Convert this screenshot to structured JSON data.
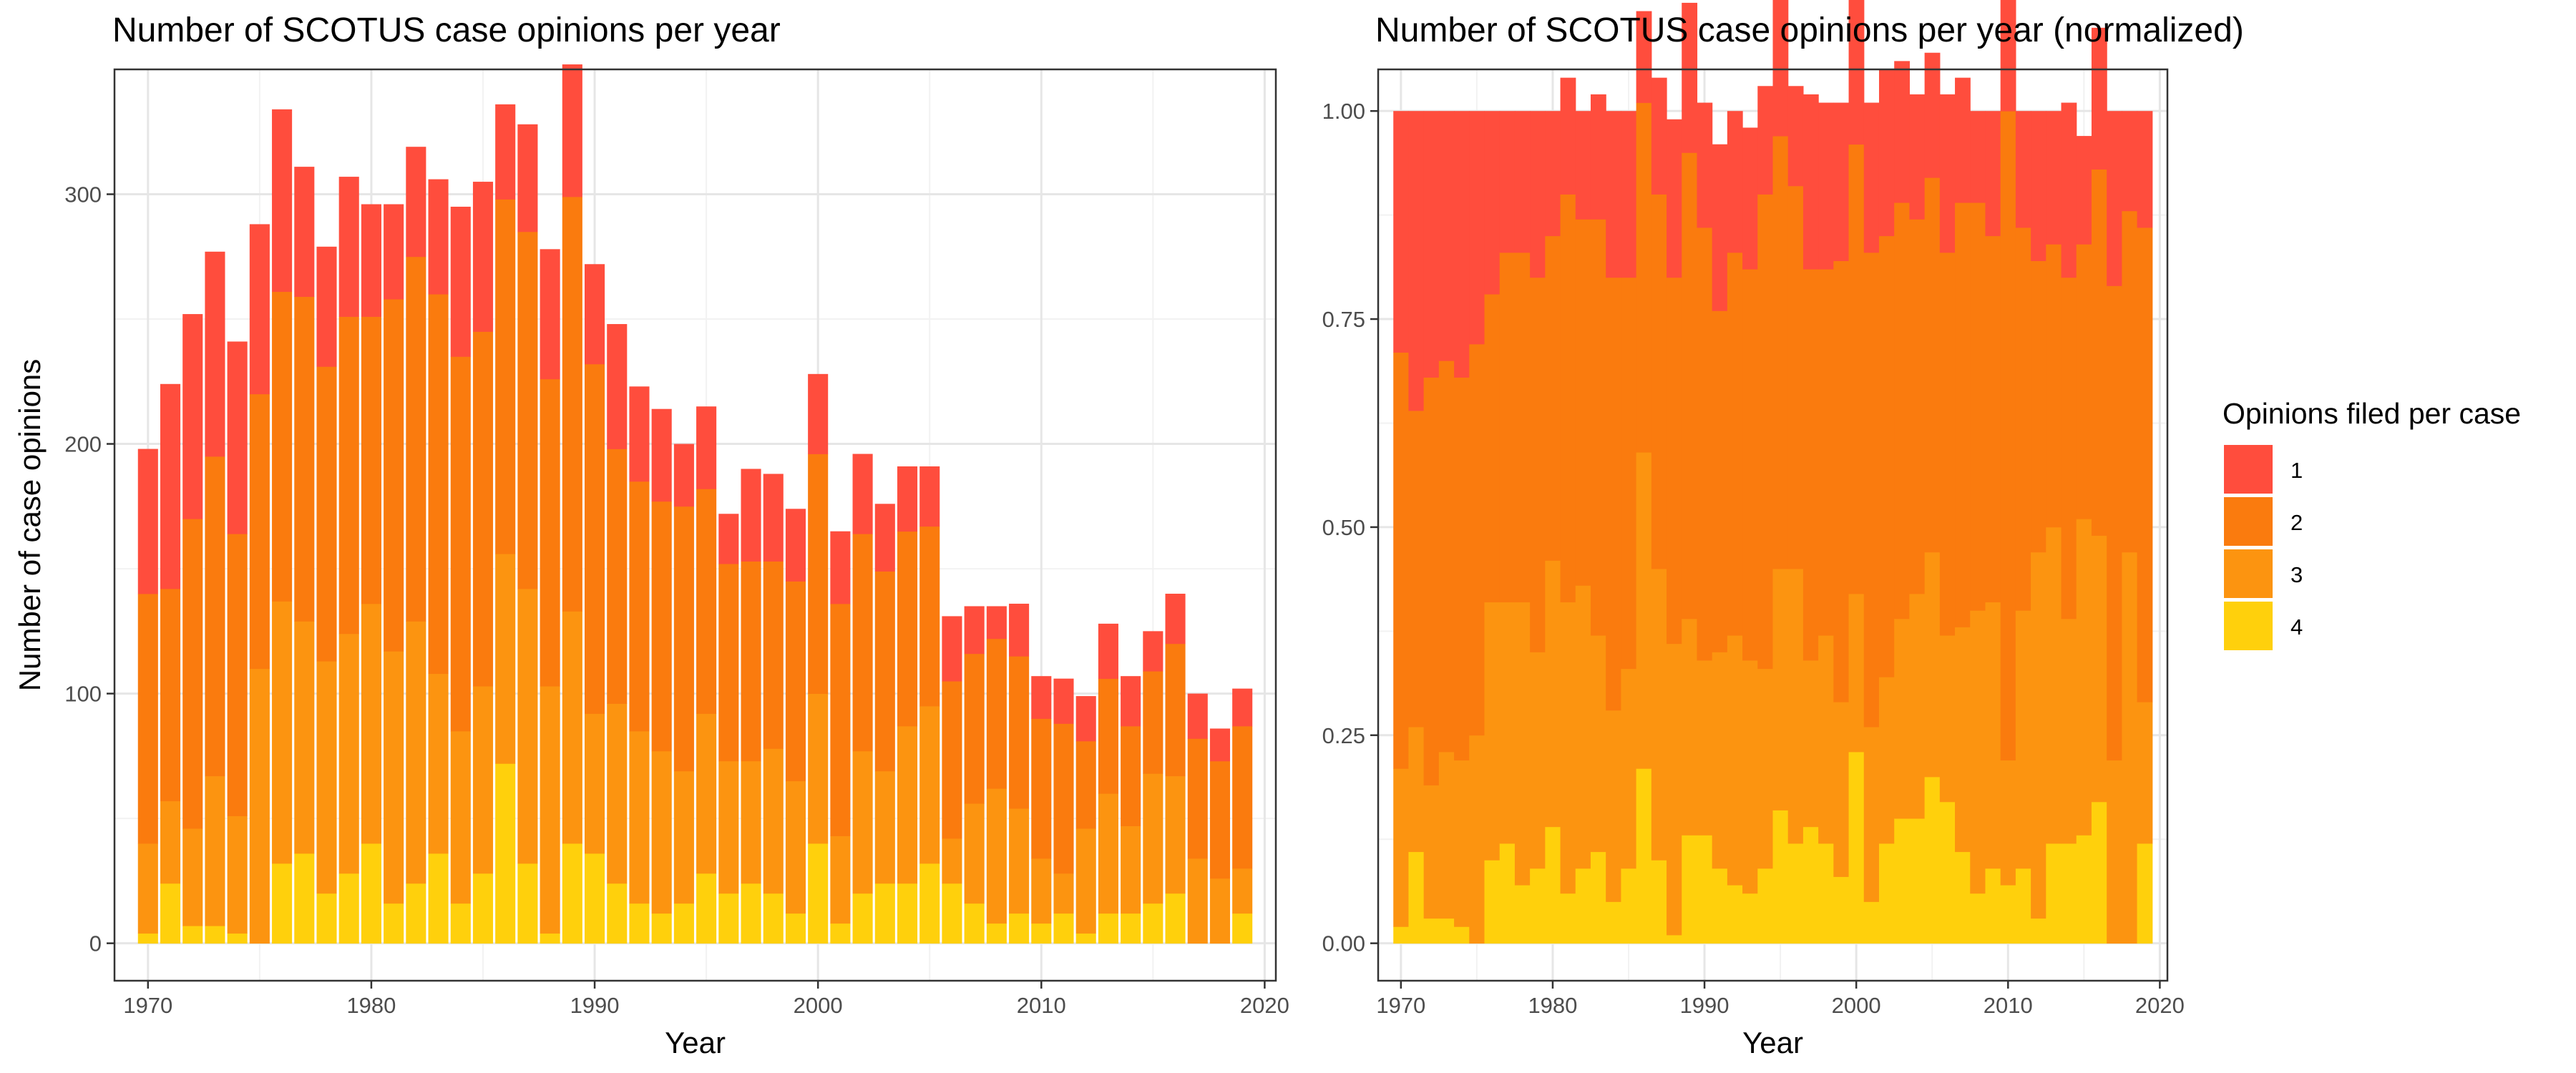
{
  "figure": {
    "legend": {
      "title": "Opinions filed per case",
      "position": "right"
    }
  },
  "chart_data": [
    {
      "type": "bar",
      "stacked": true,
      "title": "Number of SCOTUS case opinions per year",
      "xlabel": "Year",
      "ylabel": "Number of case opinions",
      "xlim": [
        1968.5,
        2020.5
      ],
      "ylim": [
        -15,
        350
      ],
      "x_ticks": [
        1970,
        1980,
        1990,
        2000,
        2010,
        2020
      ],
      "y_ticks": [
        0,
        100,
        200,
        300
      ],
      "grid": true,
      "x": [
        1970,
        1971,
        1972,
        1973,
        1974,
        1975,
        1976,
        1977,
        1978,
        1979,
        1980,
        1981,
        1982,
        1983,
        1984,
        1985,
        1986,
        1987,
        1988,
        1989,
        1990,
        1991,
        1992,
        1993,
        1994,
        1995,
        1996,
        1997,
        1998,
        1999,
        2000,
        2001,
        2002,
        2003,
        2004,
        2005,
        2006,
        2007,
        2008,
        2009,
        2010,
        2011,
        2012,
        2013,
        2014,
        2015,
        2016,
        2017,
        2018,
        2019
      ],
      "series": [
        {
          "name": "1",
          "color": "#FF4D3D",
          "values": [
            58,
            82,
            82,
            82,
            77,
            68,
            73,
            52,
            48,
            56,
            45,
            38,
            44,
            46,
            60,
            60,
            38,
            43,
            52,
            53,
            40,
            50,
            38,
            37,
            25,
            33,
            20,
            37,
            35,
            29,
            32,
            29,
            32,
            27,
            26,
            24,
            26,
            19,
            13,
            21,
            17,
            18,
            18,
            22,
            20,
            16,
            20,
            18,
            13,
            15
          ]
        },
        {
          "name": "2",
          "color": "#FA7B0E",
          "values": [
            100,
            85,
            124,
            128,
            113,
            110,
            124,
            130,
            118,
            127,
            115,
            141,
            146,
            152,
            150,
            142,
            142,
            143,
            123,
            166,
            140,
            102,
            100,
            100,
            106,
            90,
            79,
            80,
            75,
            80,
            96,
            93,
            87,
            80,
            78,
            72,
            63,
            60,
            60,
            61,
            56,
            60,
            35,
            46,
            40,
            41,
            53,
            48,
            47,
            57
          ]
        },
        {
          "name": "3",
          "color": "#FC9410",
          "values": [
            36,
            33,
            39,
            60,
            47,
            110,
            105,
            93,
            93,
            96,
            96,
            101,
            105,
            72,
            69,
            75,
            84,
            110,
            99,
            93,
            56,
            72,
            69,
            65,
            53,
            64,
            53,
            49,
            58,
            53,
            60,
            35,
            57,
            45,
            63,
            63,
            18,
            40,
            54,
            42,
            26,
            16,
            42,
            48,
            35,
            52,
            47,
            34,
            26,
            18
          ]
        },
        {
          "name": "4",
          "color": "#FFD00C",
          "values": [
            4,
            24,
            7,
            7,
            4,
            0,
            32,
            36,
            20,
            28,
            40,
            16,
            24,
            36,
            16,
            28,
            72,
            32,
            4,
            40,
            36,
            24,
            16,
            12,
            16,
            28,
            20,
            24,
            20,
            12,
            40,
            8,
            20,
            24,
            24,
            32,
            24,
            16,
            8,
            12,
            8,
            12,
            4,
            12,
            12,
            16,
            20,
            0,
            0,
            12
          ]
        }
      ]
    },
    {
      "type": "bar",
      "stacked": true,
      "normalized": true,
      "title": "Number of SCOTUS case opinions per year (normalized)",
      "xlabel": "Year",
      "ylabel": "",
      "xlim": [
        1968.5,
        2020.5
      ],
      "ylim": [
        -0.045,
        1.05
      ],
      "x_ticks": [
        1970,
        1980,
        1990,
        2000,
        2010,
        2020
      ],
      "y_ticks": [
        0,
        0.25,
        0.5,
        0.75,
        1.0
      ],
      "y_tick_labels": [
        "0.00",
        "0.25",
        "0.50",
        "0.75",
        "1.00"
      ],
      "grid": true,
      "x": [
        1970,
        1971,
        1972,
        1973,
        1974,
        1975,
        1976,
        1977,
        1978,
        1979,
        1980,
        1981,
        1982,
        1983,
        1984,
        1985,
        1986,
        1987,
        1988,
        1989,
        1990,
        1991,
        1992,
        1993,
        1994,
        1995,
        1996,
        1997,
        1998,
        1999,
        2000,
        2001,
        2002,
        2003,
        2004,
        2005,
        2006,
        2007,
        2008,
        2009,
        2010,
        2011,
        2012,
        2013,
        2014,
        2015,
        2016,
        2017,
        2018,
        2019
      ],
      "series": [
        {
          "name": "1",
          "color": "#FF4D3D",
          "values": [
            0.29,
            0.36,
            0.32,
            0.3,
            0.32,
            0.28,
            0.22,
            0.17,
            0.17,
            0.2,
            0.15,
            0.14,
            0.13,
            0.15,
            0.2,
            0.2,
            0.11,
            0.14,
            0.19,
            0.18,
            0.15,
            0.2,
            0.17,
            0.17,
            0.13,
            0.19,
            0.12,
            0.21,
            0.2,
            0.19,
            0.18,
            0.18,
            0.2,
            0.17,
            0.15,
            0.15,
            0.19,
            0.15,
            0.11,
            0.15,
            0.14,
            0.14,
            0.18,
            0.16,
            0.21,
            0.13,
            0.17,
            0.21,
            0.12,
            0.14
          ]
        },
        {
          "name": "2",
          "color": "#FA7B0E",
          "values": [
            0.5,
            0.38,
            0.49,
            0.47,
            0.46,
            0.47,
            0.37,
            0.42,
            0.42,
            0.45,
            0.39,
            0.49,
            0.44,
            0.5,
            0.52,
            0.47,
            0.42,
            0.45,
            0.44,
            0.56,
            0.52,
            0.41,
            0.46,
            0.47,
            0.57,
            0.52,
            0.46,
            0.47,
            0.44,
            0.53,
            0.54,
            0.57,
            0.53,
            0.5,
            0.45,
            0.45,
            0.46,
            0.51,
            0.49,
            0.44,
            0.78,
            0.46,
            0.35,
            0.34,
            0.41,
            0.33,
            0.44,
            0.57,
            0.41,
            0.57
          ]
        },
        {
          "name": "3",
          "color": "#FC9410",
          "values": [
            0.19,
            0.15,
            0.16,
            0.2,
            0.2,
            0.25,
            0.31,
            0.29,
            0.34,
            0.26,
            0.32,
            0.35,
            0.34,
            0.26,
            0.23,
            0.24,
            0.38,
            0.35,
            0.35,
            0.26,
            0.21,
            0.26,
            0.3,
            0.28,
            0.24,
            0.29,
            0.33,
            0.2,
            0.25,
            0.21,
            0.19,
            0.21,
            0.2,
            0.24,
            0.27,
            0.27,
            0.2,
            0.27,
            0.34,
            0.32,
            0.15,
            0.31,
            0.44,
            0.38,
            0.27,
            0.38,
            0.32,
            0.22,
            0.47,
            0.17
          ]
        },
        {
          "name": "4",
          "color": "#FFD00C",
          "values": [
            0.02,
            0.11,
            0.03,
            0.03,
            0.02,
            0.0,
            0.1,
            0.12,
            0.07,
            0.09,
            0.14,
            0.06,
            0.09,
            0.11,
            0.05,
            0.09,
            0.21,
            0.1,
            0.01,
            0.13,
            0.13,
            0.09,
            0.07,
            0.06,
            0.09,
            0.16,
            0.12,
            0.14,
            0.12,
            0.08,
            0.23,
            0.05,
            0.12,
            0.15,
            0.15,
            0.2,
            0.17,
            0.11,
            0.06,
            0.09,
            0.07,
            0.09,
            0.03,
            0.12,
            0.12,
            0.13,
            0.17,
            0.0,
            0.0,
            0.12
          ]
        }
      ]
    }
  ]
}
